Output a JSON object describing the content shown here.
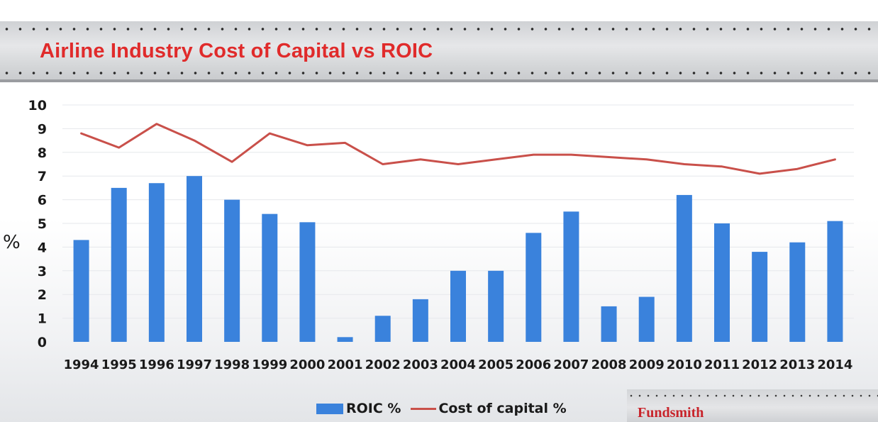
{
  "page": {
    "title": "Airline Industry Cost of Capital vs ROIC",
    "brand": "Fundsmith"
  },
  "colors": {
    "title": "#e02b2b",
    "bar": "#3a82dc",
    "line": "#c9504a",
    "brand": "#c8242b"
  },
  "chart_data": {
    "type": "bar",
    "title": "Airline Industry Cost of Capital vs ROIC",
    "ylabel": "%",
    "xlabel": "",
    "ylim": [
      0,
      10
    ],
    "yticks": [
      "0",
      "1",
      "2",
      "3",
      "4",
      "5",
      "6",
      "7",
      "8",
      "9",
      "10"
    ],
    "grid": true,
    "legend": "bottom",
    "categories": [
      "1994",
      "1995",
      "1996",
      "1997",
      "1998",
      "1999",
      "2000",
      "2001",
      "2002",
      "2003",
      "2004",
      "2005",
      "2006",
      "2007",
      "2008",
      "2009",
      "2010",
      "2011",
      "2012",
      "2013",
      "2014"
    ],
    "series": [
      {
        "name": "ROIC %",
        "type": "bar",
        "values": [
          4.3,
          6.5,
          6.7,
          7.0,
          6.0,
          5.4,
          5.05,
          0.2,
          1.1,
          1.8,
          3.0,
          3.0,
          4.6,
          5.5,
          1.5,
          1.9,
          6.2,
          5.0,
          3.8,
          4.2,
          5.1
        ]
      },
      {
        "name": "Cost of capital %",
        "type": "line",
        "values": [
          8.8,
          8.2,
          9.2,
          8.5,
          7.6,
          8.8,
          8.3,
          8.4,
          7.5,
          7.7,
          7.5,
          7.7,
          7.9,
          7.9,
          7.8,
          7.7,
          7.5,
          7.4,
          7.1,
          7.3,
          7.7
        ]
      }
    ]
  }
}
